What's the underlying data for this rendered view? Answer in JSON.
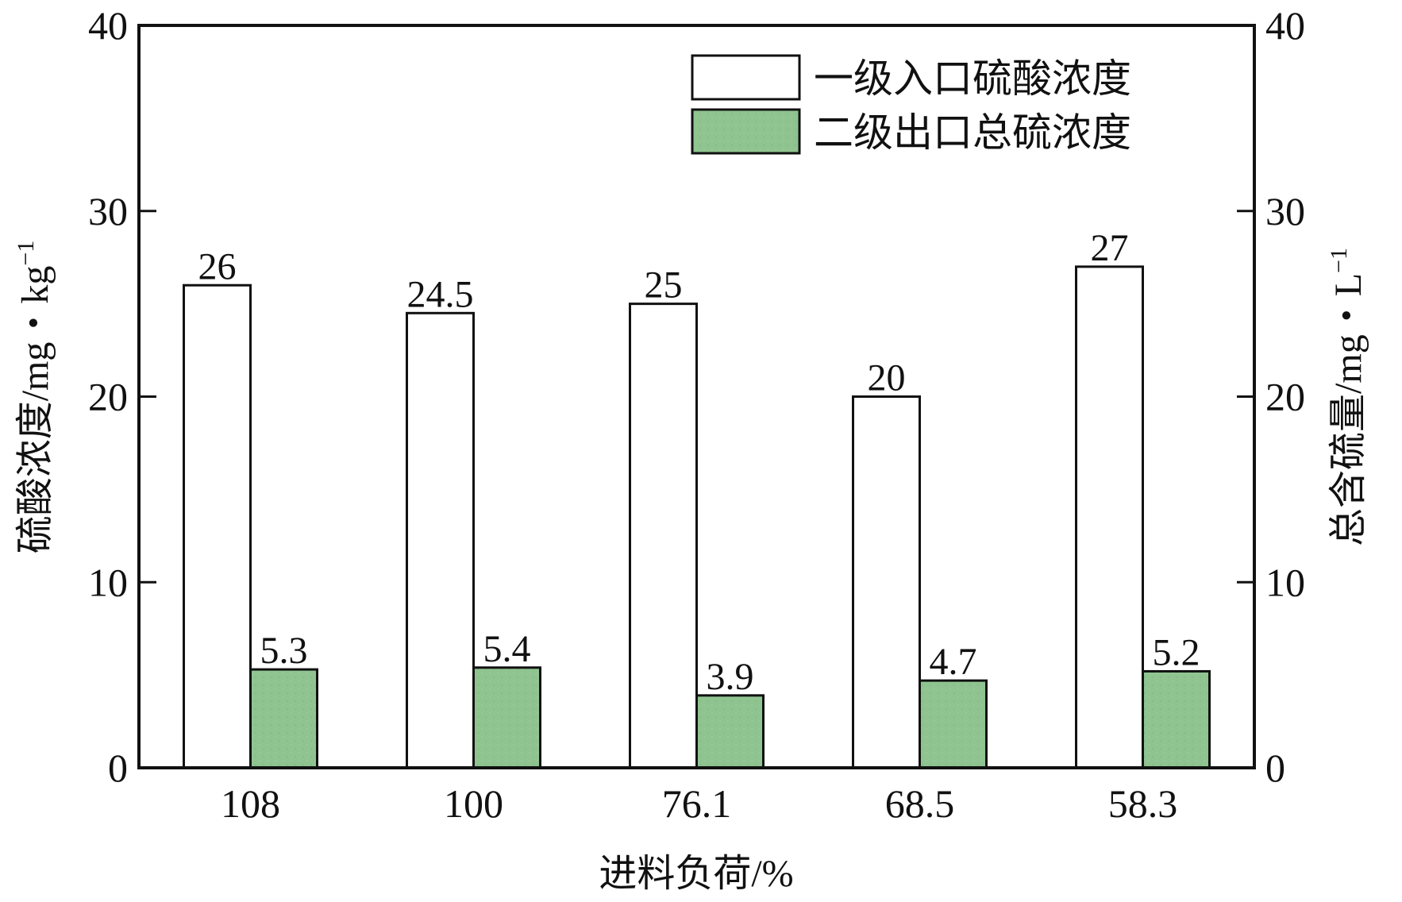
{
  "chart_data": {
    "type": "bar",
    "categories": [
      "108",
      "100",
      "76.1",
      "68.5",
      "58.3"
    ],
    "series": [
      {
        "name": "一级入口硫酸浓度",
        "values": [
          26,
          24.5,
          25,
          20,
          27
        ],
        "labels": [
          "26",
          "24.5",
          "25",
          "20",
          "27"
        ],
        "color": "#ffffff",
        "axis": "left"
      },
      {
        "name": "二级出口总硫浓度",
        "values": [
          5.3,
          5.4,
          3.9,
          4.7,
          5.2
        ],
        "labels": [
          "5.3",
          "5.4",
          "3.9",
          "4.7",
          "5.2"
        ],
        "color": "#8fc490",
        "axis": "right"
      }
    ],
    "xlabel": "进料负荷/%",
    "ylabel_left": "硫酸浓度/mg・kg",
    "ylabel_left_sup": "−1",
    "ylabel_right": "总含硫量/mg・L",
    "ylabel_right_sup": "−1",
    "ylim": [
      0,
      40
    ],
    "yticks": [
      "0",
      "10",
      "20",
      "30",
      "40"
    ],
    "y2lim": [
      0,
      40
    ],
    "y2ticks": [
      "0",
      "10",
      "20",
      "30",
      "40"
    ],
    "legend_position": "top-right",
    "grid": false
  }
}
